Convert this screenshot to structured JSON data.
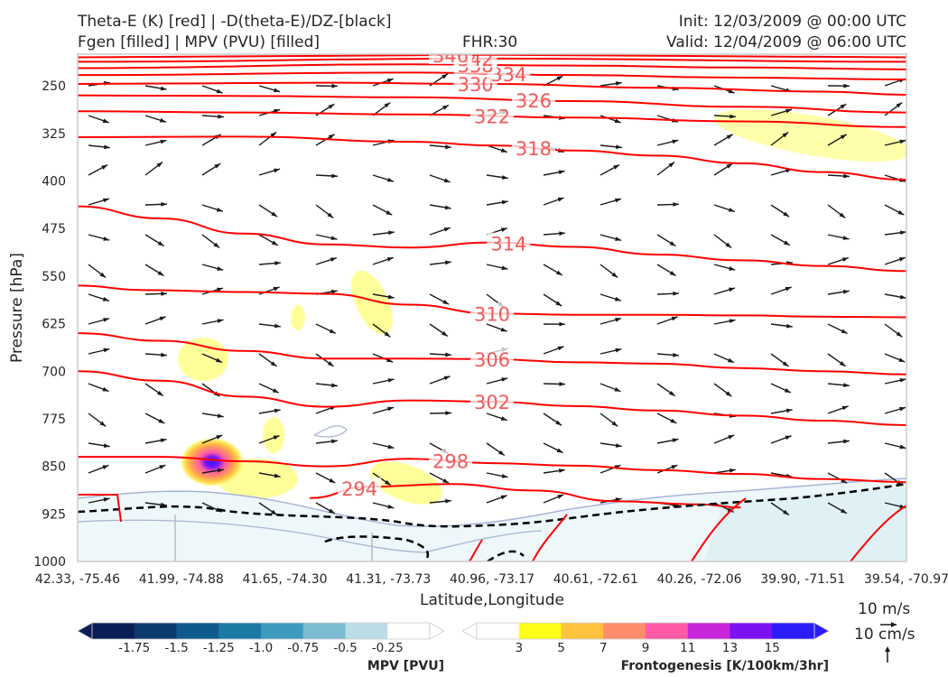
{
  "header": {
    "title_line1": "Theta-E (K) [red] | -D(theta-E)/DZ-[black]",
    "title_line2": "Fgen [filled] | MPV (PVU) [filled]",
    "fhr": "FHR:30",
    "init": "Init: 12/03/2009 @ 00:00 UTC",
    "valid": "Valid: 12/04/2009 @ 06:00 UTC"
  },
  "chart_data": {
    "type": "cross-section",
    "xlabel": "Latitude,Longitude",
    "ylabel": "Pressure [hPa]",
    "x_ticks": [
      "42.33, -75.46",
      "41.99, -74.88",
      "41.65, -74.30",
      "41.31, -73.73",
      "40.96, -73.17",
      "40.61, -72.61",
      "40.26, -72.06",
      "39.90, -71.51",
      "39.54, -70.97"
    ],
    "y_ticks": [
      250,
      325,
      400,
      475,
      550,
      625,
      700,
      775,
      850,
      925,
      1000
    ],
    "ylim": [
      1000,
      200
    ],
    "y_scale": "linear-inverted",
    "theta_e_contours": [
      {
        "label": "310",
        "value": 310,
        "points": [
          [
            0,
            565
          ],
          [
            0.08,
            572
          ],
          [
            0.2,
            575
          ],
          [
            0.3,
            578
          ],
          [
            0.4,
            595
          ],
          [
            0.5,
            609
          ],
          [
            0.6,
            611
          ],
          [
            0.7,
            611
          ],
          [
            0.8,
            612
          ],
          [
            0.9,
            614
          ],
          [
            1,
            615
          ]
        ]
      },
      {
        "label": "306",
        "value": 306,
        "points": [
          [
            0,
            640
          ],
          [
            0.1,
            652
          ],
          [
            0.2,
            668
          ],
          [
            0.3,
            680
          ],
          [
            0.4,
            680
          ],
          [
            0.5,
            681
          ],
          [
            0.6,
            686
          ],
          [
            0.7,
            688
          ],
          [
            0.8,
            695
          ],
          [
            0.9,
            700
          ],
          [
            1,
            705
          ]
        ]
      },
      {
        "label": "302",
        "value": 302,
        "points": [
          [
            0,
            700
          ],
          [
            0.1,
            715
          ],
          [
            0.2,
            740
          ],
          [
            0.3,
            756
          ],
          [
            0.4,
            746
          ],
          [
            0.5,
            748
          ],
          [
            0.6,
            755
          ],
          [
            0.7,
            762
          ],
          [
            0.8,
            770
          ],
          [
            0.9,
            778
          ],
          [
            1,
            785
          ]
        ]
      },
      {
        "label": "298",
        "value": 298,
        "points": [
          [
            0,
            835
          ],
          [
            0.1,
            835
          ],
          [
            0.2,
            842
          ],
          [
            0.3,
            850
          ],
          [
            0.4,
            838
          ],
          [
            0.5,
            845
          ],
          [
            0.6,
            849
          ],
          [
            0.7,
            856
          ],
          [
            0.8,
            862
          ],
          [
            0.9,
            870
          ],
          [
            1,
            875
          ]
        ]
      },
      {
        "label": "294",
        "value": 294,
        "points": [
          [
            0.28,
            900
          ],
          [
            0.35,
            882
          ],
          [
            0.45,
            878
          ],
          [
            0.55,
            888
          ],
          [
            0.65,
            905
          ],
          [
            0.75,
            910
          ],
          [
            0.8,
            915
          ]
        ]
      },
      {
        "label": "314",
        "value": 314,
        "points": [
          [
            0,
            440
          ],
          [
            0.1,
            459
          ],
          [
            0.2,
            483
          ],
          [
            0.3,
            500
          ],
          [
            0.4,
            505
          ],
          [
            0.5,
            497
          ],
          [
            0.6,
            504
          ],
          [
            0.7,
            516
          ],
          [
            0.8,
            525
          ],
          [
            0.9,
            534
          ],
          [
            1,
            542
          ]
        ]
      },
      {
        "label": "318",
        "value": 318,
        "points": [
          [
            0,
            331
          ],
          [
            0.2,
            330
          ],
          [
            0.4,
            338
          ],
          [
            0.5,
            344
          ],
          [
            0.6,
            352
          ],
          [
            0.7,
            360
          ],
          [
            0.8,
            372
          ],
          [
            0.9,
            386
          ],
          [
            1,
            398
          ]
        ]
      },
      {
        "label": "322",
        "value": 322,
        "points": [
          [
            0,
            290
          ],
          [
            0.2,
            292
          ],
          [
            0.4,
            295
          ],
          [
            0.6,
            300
          ],
          [
            0.8,
            306
          ],
          [
            1,
            315
          ]
        ]
      },
      {
        "label": "326",
        "value": 326,
        "points": [
          [
            0,
            265
          ],
          [
            0.2,
            266
          ],
          [
            0.4,
            268
          ],
          [
            0.6,
            274
          ],
          [
            0.8,
            283
          ],
          [
            1,
            292
          ]
        ]
      },
      {
        "label": "330",
        "value": 330,
        "points": [
          [
            0,
            247
          ],
          [
            0.3,
            245
          ],
          [
            0.5,
            247
          ],
          [
            0.7,
            253
          ],
          [
            0.9,
            259
          ],
          [
            1,
            264
          ]
        ]
      },
      {
        "label": "334",
        "value": 334,
        "points": [
          [
            0,
            233
          ],
          [
            0.4,
            229
          ],
          [
            0.6,
            233
          ],
          [
            0.8,
            237
          ],
          [
            1,
            240
          ]
        ]
      },
      {
        "label": "338",
        "value": 338,
        "points": [
          [
            0,
            222
          ],
          [
            0.4,
            216
          ],
          [
            0.6,
            218
          ],
          [
            0.8,
            221
          ],
          [
            1,
            224
          ]
        ]
      },
      {
        "label": "342",
        "value": 342,
        "points": [
          [
            0,
            212
          ],
          [
            0.5,
            207
          ],
          [
            1,
            212
          ]
        ]
      },
      {
        "label": "346",
        "value": 346,
        "points": [
          [
            0,
            205
          ],
          [
            0.5,
            201
          ],
          [
            1,
            205
          ]
        ]
      }
    ],
    "mpv_colorbar": {
      "label": "MPV [PVU]",
      "ticks": [
        "-1.75",
        "-1.5",
        "-1.25",
        "-1.0",
        "-0.75",
        "-0.5",
        "-0.25"
      ],
      "colors": [
        "#0b1d55",
        "#0d3a6e",
        "#0f5a8c",
        "#1a7aa3",
        "#3e9bbd",
        "#7ebcd3",
        "#bcdde8",
        "#ffffff"
      ]
    },
    "fgen_colorbar": {
      "label": "Frontogenesis [K/100km/3hr]",
      "ticks": [
        "3",
        "5",
        "7",
        "9",
        "11",
        "13",
        "15"
      ],
      "colors": [
        "#ffffff",
        "#ffff1a",
        "#ffc23f",
        "#ff8c6a",
        "#ff5aa5",
        "#c726d8",
        "#7c12f2",
        "#2b1cfa"
      ]
    },
    "vector_key": {
      "horizontal": "10 m/s",
      "vertical": "10 cm/s"
    }
  },
  "colors": {
    "theta_e": "#ff0000",
    "theta_e_label": "#f05a5a",
    "stability": "#000000",
    "vectors": "#1a1a1a"
  }
}
